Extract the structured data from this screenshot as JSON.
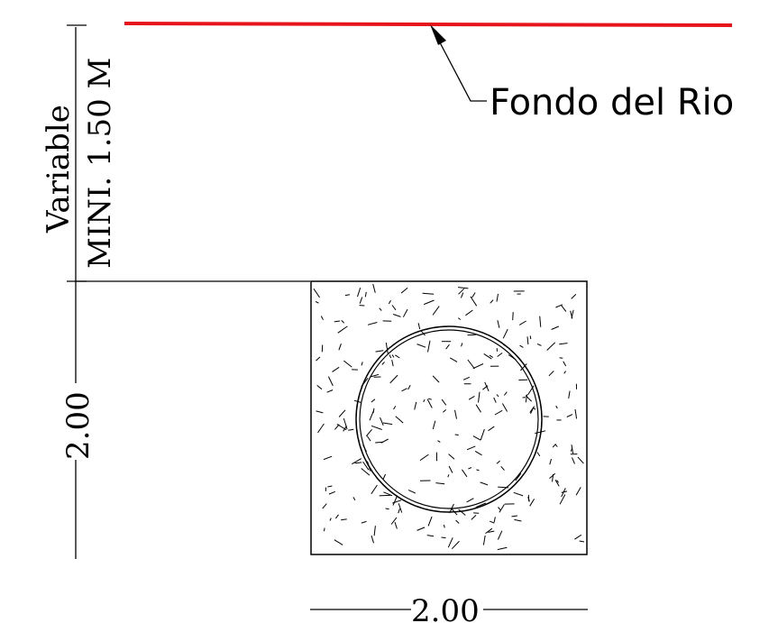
{
  "drawing": {
    "river_label": "Fondo del Rio",
    "vertical_dim_line1": "Variable",
    "vertical_dim_line2": "MINI. 1.50 M",
    "box_height_dim": "2.00",
    "box_width_dim": "2.00",
    "colors": {
      "river_bed_line": "#e8141b",
      "lines": "#000000"
    }
  }
}
